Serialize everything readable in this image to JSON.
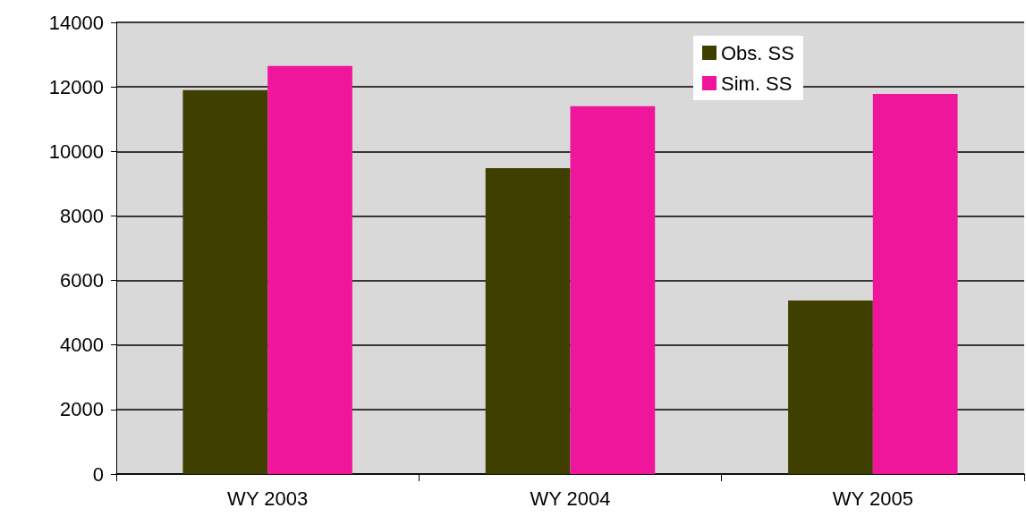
{
  "chart_data": {
    "type": "bar",
    "categories": [
      "WY 2003",
      "WY 2004",
      "WY 2005"
    ],
    "series": [
      {
        "name": "Obs. SS",
        "color": "#3f3f00",
        "values": [
          11900,
          9480,
          5380
        ]
      },
      {
        "name": "Sim. SS",
        "color": "#f0169b",
        "values": [
          12650,
          11400,
          11780
        ]
      }
    ],
    "ylim": [
      0,
      14000
    ],
    "yticks": [
      0,
      2000,
      4000,
      6000,
      8000,
      10000,
      12000,
      14000
    ],
    "grid": "y",
    "legend": "top right"
  }
}
